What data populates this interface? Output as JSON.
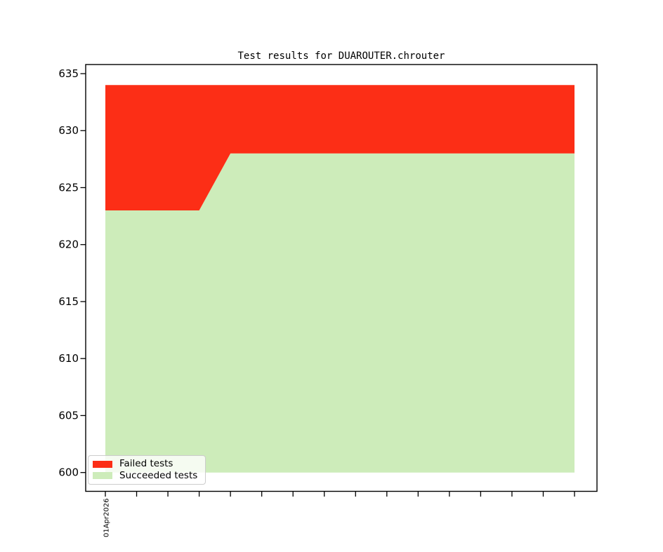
{
  "chart_data": {
    "type": "area",
    "stacked": true,
    "title": "Test results for DUAROUTER.chrouter",
    "xlabel": "",
    "ylabel": "",
    "categories": [
      "01Apr2026",
      "",
      "",
      "",
      "",
      "",
      "",
      "",
      "",
      "",
      "",
      "",
      "",
      "",
      "",
      ""
    ],
    "series": [
      {
        "name": "Failed tests",
        "color": "#fc2e16",
        "values": [
          11,
          11,
          11,
          11,
          6,
          6,
          6,
          6,
          6,
          6,
          6,
          6,
          6,
          6,
          6,
          6
        ]
      },
      {
        "name": "Succeeded tests",
        "color": "#cdecba",
        "values": [
          623,
          623,
          623,
          623,
          628,
          628,
          628,
          628,
          628,
          628,
          628,
          628,
          628,
          628,
          628,
          628
        ]
      }
    ],
    "stack_order_bottom_to_top": [
      "Succeeded tests",
      "Failed tests"
    ],
    "totals": [
      634,
      634,
      634,
      634,
      634,
      634,
      634,
      634,
      634,
      634,
      634,
      634,
      634,
      634,
      634,
      634
    ],
    "baseline": 600,
    "y_ticks": [
      600,
      605,
      610,
      615,
      620,
      625,
      630,
      635
    ],
    "ylim": [
      598.35,
      635.8
    ],
    "grid": false,
    "axis_color": "#000000",
    "background_color": "#ffffff",
    "legend": {
      "position": "lower left",
      "entries": [
        "Failed tests",
        "Succeeded tests"
      ]
    }
  }
}
